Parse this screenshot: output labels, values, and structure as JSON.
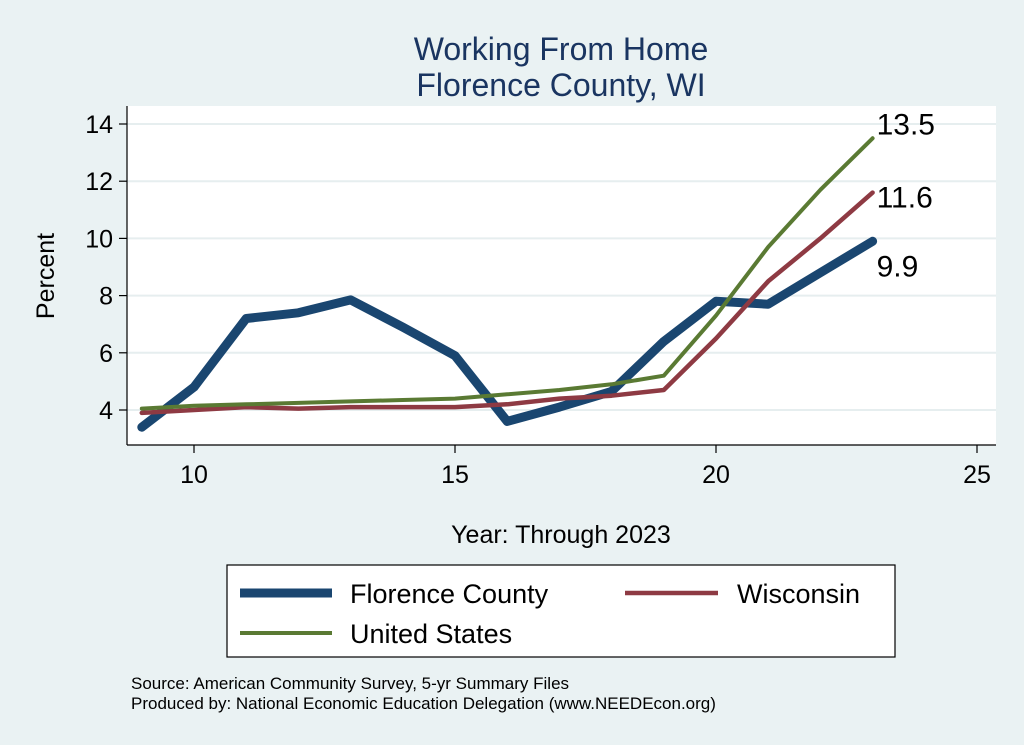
{
  "chart_data": {
    "type": "line",
    "title": [
      "Working From Home",
      "Florence County, WI"
    ],
    "xlabel": "Year: Through 2023",
    "ylabel": "Percent",
    "xlim": [
      9,
      25
    ],
    "ylim": [
      3.1,
      14.4
    ],
    "xticks": [
      10,
      15,
      20,
      25
    ],
    "yticks": [
      4,
      6,
      8,
      10,
      12,
      14
    ],
    "grid": true,
    "legend_position": "bottom",
    "series": [
      {
        "name": "Florence County",
        "color": "#1a4670",
        "x": [
          9,
          10,
          11,
          12,
          13,
          14,
          15,
          16,
          17,
          18,
          19,
          20,
          21,
          22,
          23
        ],
        "y": [
          3.4,
          4.8,
          7.2,
          7.4,
          7.85,
          6.9,
          5.9,
          3.6,
          4.1,
          4.65,
          6.4,
          7.8,
          7.7,
          8.8,
          9.9
        ],
        "end_label": "9.9"
      },
      {
        "name": "Wisconsin",
        "color": "#8e3a43",
        "x": [
          9,
          10,
          11,
          12,
          13,
          14,
          15,
          16,
          17,
          18,
          19,
          20,
          21,
          22,
          23
        ],
        "y": [
          3.9,
          4.0,
          4.1,
          4.05,
          4.1,
          4.1,
          4.1,
          4.2,
          4.4,
          4.5,
          4.7,
          6.5,
          8.5,
          10.0,
          11.6
        ],
        "end_label": "11.6"
      },
      {
        "name": "United States",
        "color": "#5a7a33",
        "x": [
          9,
          10,
          11,
          12,
          13,
          14,
          15,
          16,
          17,
          18,
          19,
          20,
          21,
          22,
          23
        ],
        "y": [
          4.05,
          4.15,
          4.2,
          4.25,
          4.3,
          4.35,
          4.4,
          4.55,
          4.7,
          4.9,
          5.2,
          7.3,
          9.7,
          11.7,
          13.5
        ],
        "end_label": "13.5"
      }
    ]
  },
  "footer": {
    "source": "Source: American Community Survey, 5-yr Summary Files",
    "produced_by": "Produced by: National Economic Education Delegation (www.NEEDEcon.org)"
  }
}
